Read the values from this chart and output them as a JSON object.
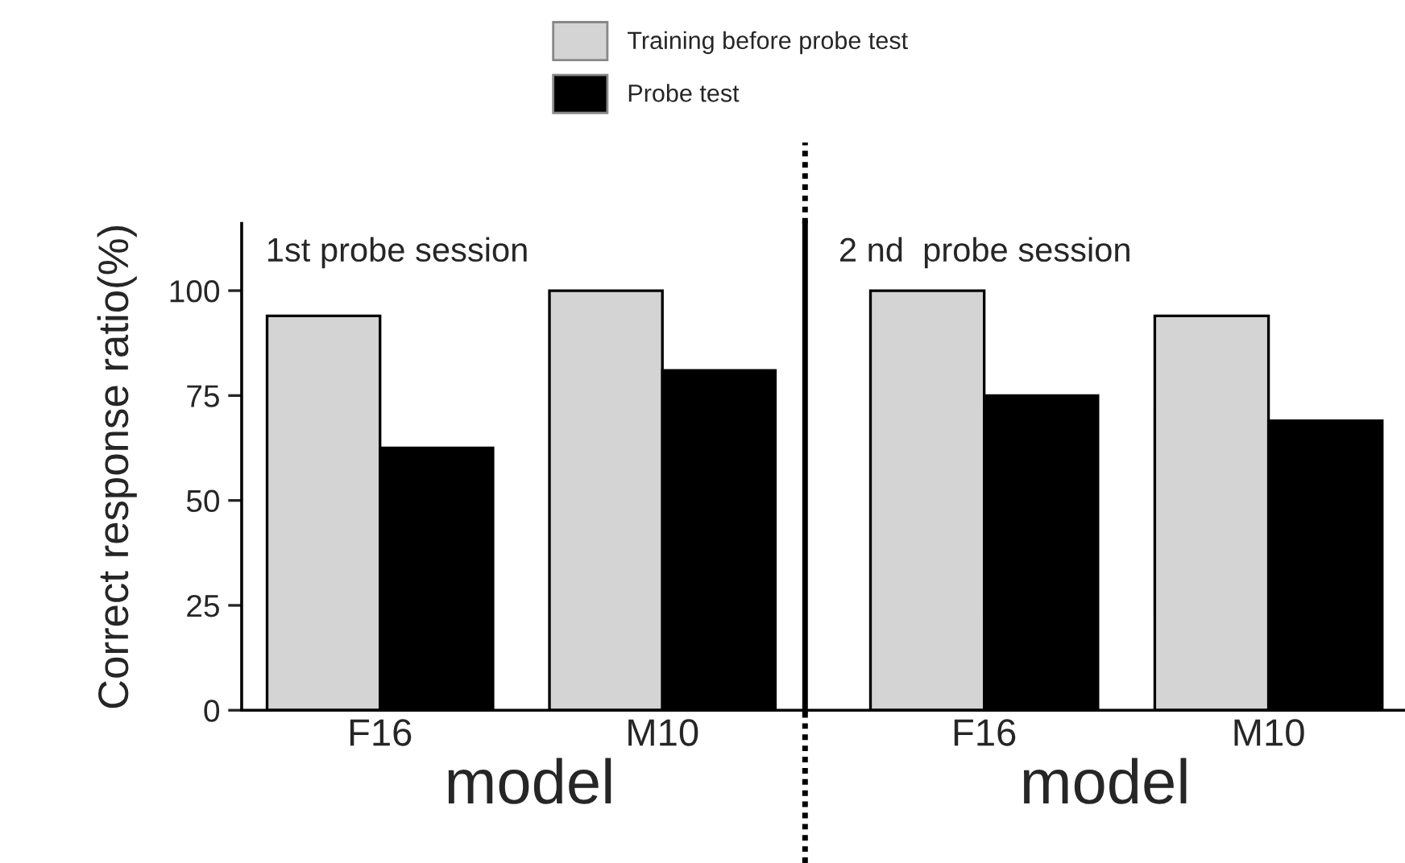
{
  "chart_data": [
    {
      "type": "bar",
      "title": "1st probe session",
      "xlabel": "model",
      "ylabel": "Correct response ratio(%)",
      "categories": [
        "F16",
        "M10"
      ],
      "ylim": [
        0,
        116
      ],
      "yticks": [
        0,
        25,
        50,
        75,
        100
      ],
      "legend": "top",
      "grid": false,
      "series": [
        {
          "name": "Training before probe test",
          "color": "#d4d4d4",
          "values": [
            94,
            100
          ]
        },
        {
          "name": "Probe test",
          "color": "#000000",
          "values": [
            62.5,
            81
          ]
        }
      ]
    },
    {
      "type": "bar",
      "title": "2 nd  probe session",
      "xlabel": "model",
      "categories": [
        "F16",
        "M10"
      ],
      "ylim": [
        0,
        116
      ],
      "tick_labels": "x",
      "grid": false,
      "series": [
        {
          "color": "#d4d4d4",
          "values": [
            100,
            94
          ]
        },
        {
          "color": "#000000",
          "values": [
            75,
            69
          ]
        }
      ]
    }
  ]
}
